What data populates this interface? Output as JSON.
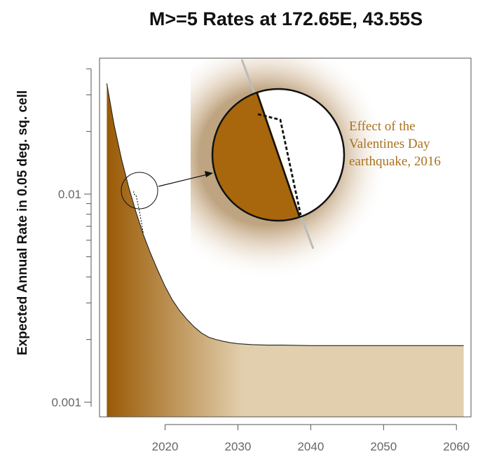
{
  "chart_data": {
    "type": "area",
    "title": "M>=5 Rates at 172.65E, 43.55S",
    "xlabel": "",
    "ylabel": "Expected Annual Rate in 0.05 deg. sq. cell",
    "xlim": [
      2011,
      2062
    ],
    "ylim": [
      0.00085,
      0.045
    ],
    "y_scale": "log",
    "x_ticks": [
      2020,
      2030,
      2040,
      2050,
      2060
    ],
    "x_tick_labels": [
      "2020",
      "2030",
      "2040",
      "2050",
      "2060"
    ],
    "y_ticks_major": [
      0.001,
      0.01
    ],
    "y_tick_labels": [
      "0.001",
      "0.01"
    ],
    "y_ticks_minor": [
      0.002,
      0.003,
      0.004,
      0.005,
      0.006,
      0.007,
      0.008,
      0.009,
      0.02,
      0.03,
      0.04
    ],
    "grid": false,
    "series": [
      {
        "x": [
          2012.0,
          2013.0,
          2014.0,
          2015.0,
          2016.0,
          2017.0,
          2018.0,
          2019.0,
          2020.0,
          2021.0,
          2022.0,
          2023.0,
          2024.0,
          2025.0,
          2026.0,
          2027.0,
          2028.0,
          2029.0,
          2030.0,
          2032.0,
          2034.0,
          2036.0,
          2040.0,
          2045.0,
          2050.0,
          2055.0,
          2061.0
        ],
        "y": [
          0.034,
          0.0215,
          0.0148,
          0.0108,
          0.0082,
          0.0064,
          0.0052,
          0.0043,
          0.0036,
          0.0031,
          0.00275,
          0.0025,
          0.0023,
          0.00215,
          0.00205,
          0.002,
          0.00196,
          0.00193,
          0.00191,
          0.00189,
          0.00188,
          0.00188,
          0.00187,
          0.00187,
          0.00187,
          0.00187,
          0.00187
        ]
      },
      {
        "style": "dashed",
        "x": [
          2015.7,
          2015.7,
          2016.0,
          2016.5,
          2017.0
        ],
        "y": [
          0.0103,
          0.01,
          0.0099,
          0.0082,
          0.0065
        ]
      }
    ],
    "annotations": [
      {
        "text": [
          "Effect of the",
          "Valentines Day",
          "earthquake, 2016"
        ],
        "color": "#a8731f"
      }
    ],
    "colors": {
      "fill_dark": "#9a5a05",
      "fill_light": "#e2cfad",
      "annotation": "#a8731f"
    }
  }
}
